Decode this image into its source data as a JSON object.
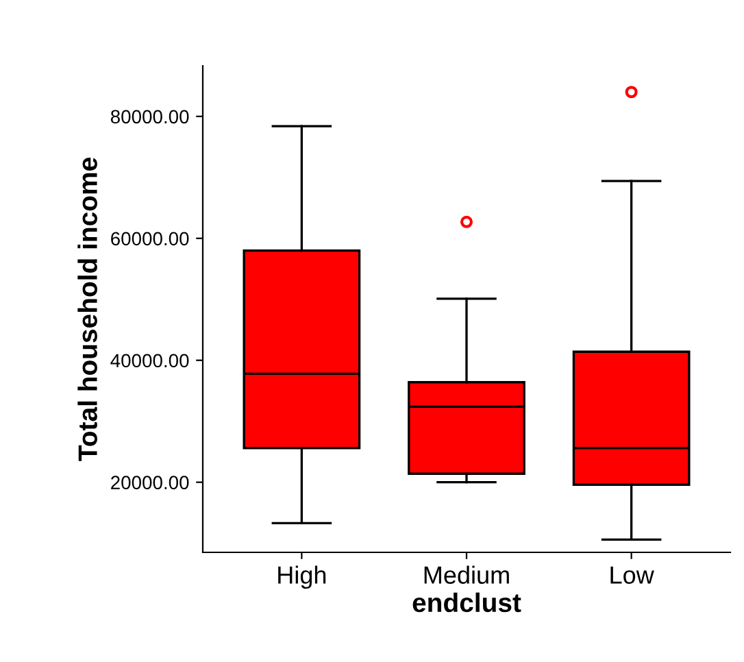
{
  "chart_data": {
    "type": "box",
    "xlabel": "endclust",
    "ylabel": "Total household income",
    "categories": [
      "High",
      "Medium",
      "Low"
    ],
    "series": [
      {
        "color": "#ff0000",
        "boxes": [
          {
            "low": 13300,
            "q1": 25600,
            "median": 37800,
            "q3": 58000,
            "high": 78400
          },
          {
            "low": 20000,
            "q1": 21400,
            "median": 32400,
            "q3": 36400,
            "high": 50100,
            "outliers": [
              62700
            ]
          },
          {
            "low": 10600,
            "q1": 19600,
            "median": 25600,
            "q3": 41400,
            "high": 69400,
            "outliers": [
              84000
            ]
          }
        ]
      }
    ],
    "ylim": [
      8500,
      88300
    ],
    "yticks": [
      {
        "value": 20000,
        "label": "20000.00"
      },
      {
        "value": 40000,
        "label": "40000.00"
      },
      {
        "value": 60000,
        "label": "60000.00"
      },
      {
        "value": 80000,
        "label": "80000.00"
      }
    ],
    "grid": false,
    "legend": false
  }
}
